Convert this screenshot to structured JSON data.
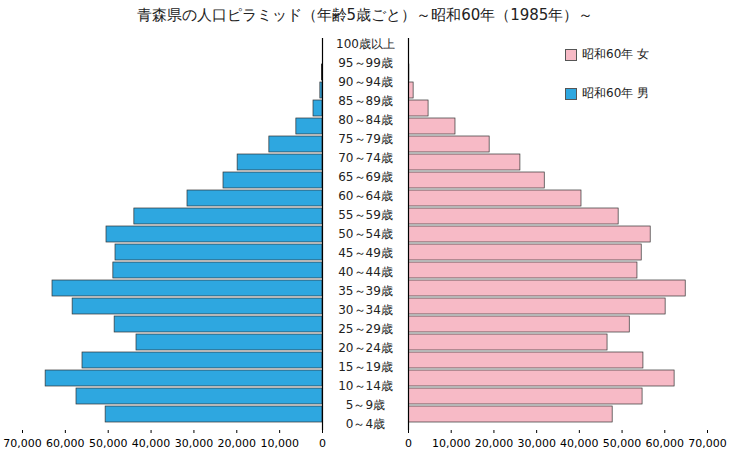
{
  "chart_data": {
    "type": "bar",
    "orientation": "horizontal",
    "title": "青森県の人口ピラミッド（年齢5歳ごと）～昭和60年（1985年）～",
    "categories": [
      "100歳以上",
      "95～99歳",
      "90～94歳",
      "85～89歳",
      "80～84歳",
      "75～79歳",
      "70～74歳",
      "65～69歳",
      "60～64歳",
      "55～59歳",
      "50～54歳",
      "45～49歳",
      "40～44歳",
      "35～39歳",
      "30～34歳",
      "25～29歳",
      "20～24歳",
      "15～19歳",
      "10～14歳",
      "5～9歳",
      "0～4歳"
    ],
    "series": [
      {
        "name": "昭和60年 女",
        "color": "#f7bac6",
        "values": [
          0,
          200,
          1200,
          4700,
          11000,
          19000,
          26200,
          31900,
          40500,
          49200,
          56700,
          54600,
          53600,
          64900,
          60200,
          51800,
          46600,
          55000,
          62300,
          54800,
          47800
        ]
      },
      {
        "name": "昭和60年 男",
        "color": "#2ea7e0",
        "values": [
          0,
          100,
          500,
          2100,
          6100,
          12400,
          19800,
          23100,
          31500,
          43900,
          50400,
          48300,
          48800,
          63000,
          58300,
          48500,
          43400,
          56000,
          64600,
          57400,
          50600
        ]
      }
    ],
    "xlim": [
      0,
      70000
    ],
    "xticks": [
      {
        "value": 0,
        "label": "0"
      },
      {
        "value": 10000,
        "label": "10,000"
      },
      {
        "value": 20000,
        "label": "20,000"
      },
      {
        "value": 30000,
        "label": "30,000"
      },
      {
        "value": 40000,
        "label": "40,000"
      },
      {
        "value": 50000,
        "label": "50,000"
      },
      {
        "value": 60000,
        "label": "60,000"
      },
      {
        "value": 70000,
        "label": "70,000"
      }
    ],
    "legend": "top-right",
    "grid": false
  }
}
